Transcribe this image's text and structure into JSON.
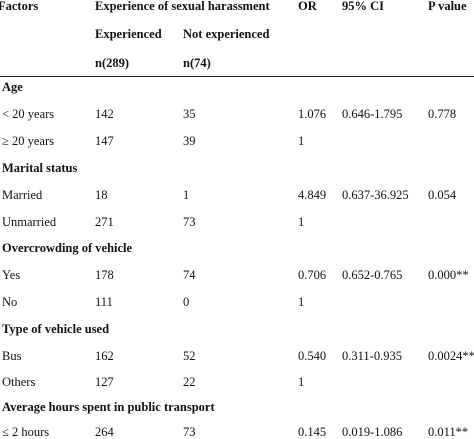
{
  "header": {
    "factors": "Factors",
    "group": "Experience of sexual harassment",
    "or": "OR",
    "ci": "95% CI",
    "p": "P value",
    "experienced": "Experienced",
    "not_experienced": "Not experienced",
    "n_exp": "n(289)",
    "n_not": "n(74)"
  },
  "sections": {
    "age": {
      "title": "Age",
      "rows": [
        {
          "label": "< 20 years",
          "exp": "142",
          "not": "35",
          "or": "1.076",
          "ci": "0.646-1.795",
          "p": "0.778"
        },
        {
          "label": "≥ 20 years",
          "exp": "147",
          "not": "39",
          "or": "1",
          "ci": "",
          "p": ""
        }
      ]
    },
    "marital": {
      "title": "Marital status",
      "rows": [
        {
          "label": "Married",
          "exp": "18",
          "not": "1",
          "or": "4.849",
          "ci": "0.637-36.925",
          "p": "0.054"
        },
        {
          "label": "Unmarried",
          "exp": "271",
          "not": "73",
          "or": "1",
          "ci": "",
          "p": ""
        }
      ]
    },
    "overcrowding": {
      "title": "Overcrowding of vehicle",
      "rows": [
        {
          "label": "Yes",
          "exp": "178",
          "not": "74",
          "or": "0.706",
          "ci": "0.652-0.765",
          "p": "0.000**"
        },
        {
          "label": "No",
          "exp": "111",
          "not": "0",
          "or": "1",
          "ci": "",
          "p": ""
        }
      ]
    },
    "vehicle": {
      "title": "Type of vehicle used",
      "rows": [
        {
          "label": "Bus",
          "exp": "162",
          "not": "52",
          "or": "0.540",
          "ci": "0.311-0.935",
          "p": "0.0024**"
        },
        {
          "label": "Others",
          "exp": "127",
          "not": "22",
          "or": "1",
          "ci": "",
          "p": ""
        }
      ]
    },
    "hours": {
      "title": "Average hours spent in public transport",
      "rows": [
        {
          "label": "≤ 2 hours",
          "exp": "264",
          "not": "73",
          "or": "0.145",
          "ci": "0.019-1.086",
          "p": "0.011**"
        }
      ]
    }
  }
}
